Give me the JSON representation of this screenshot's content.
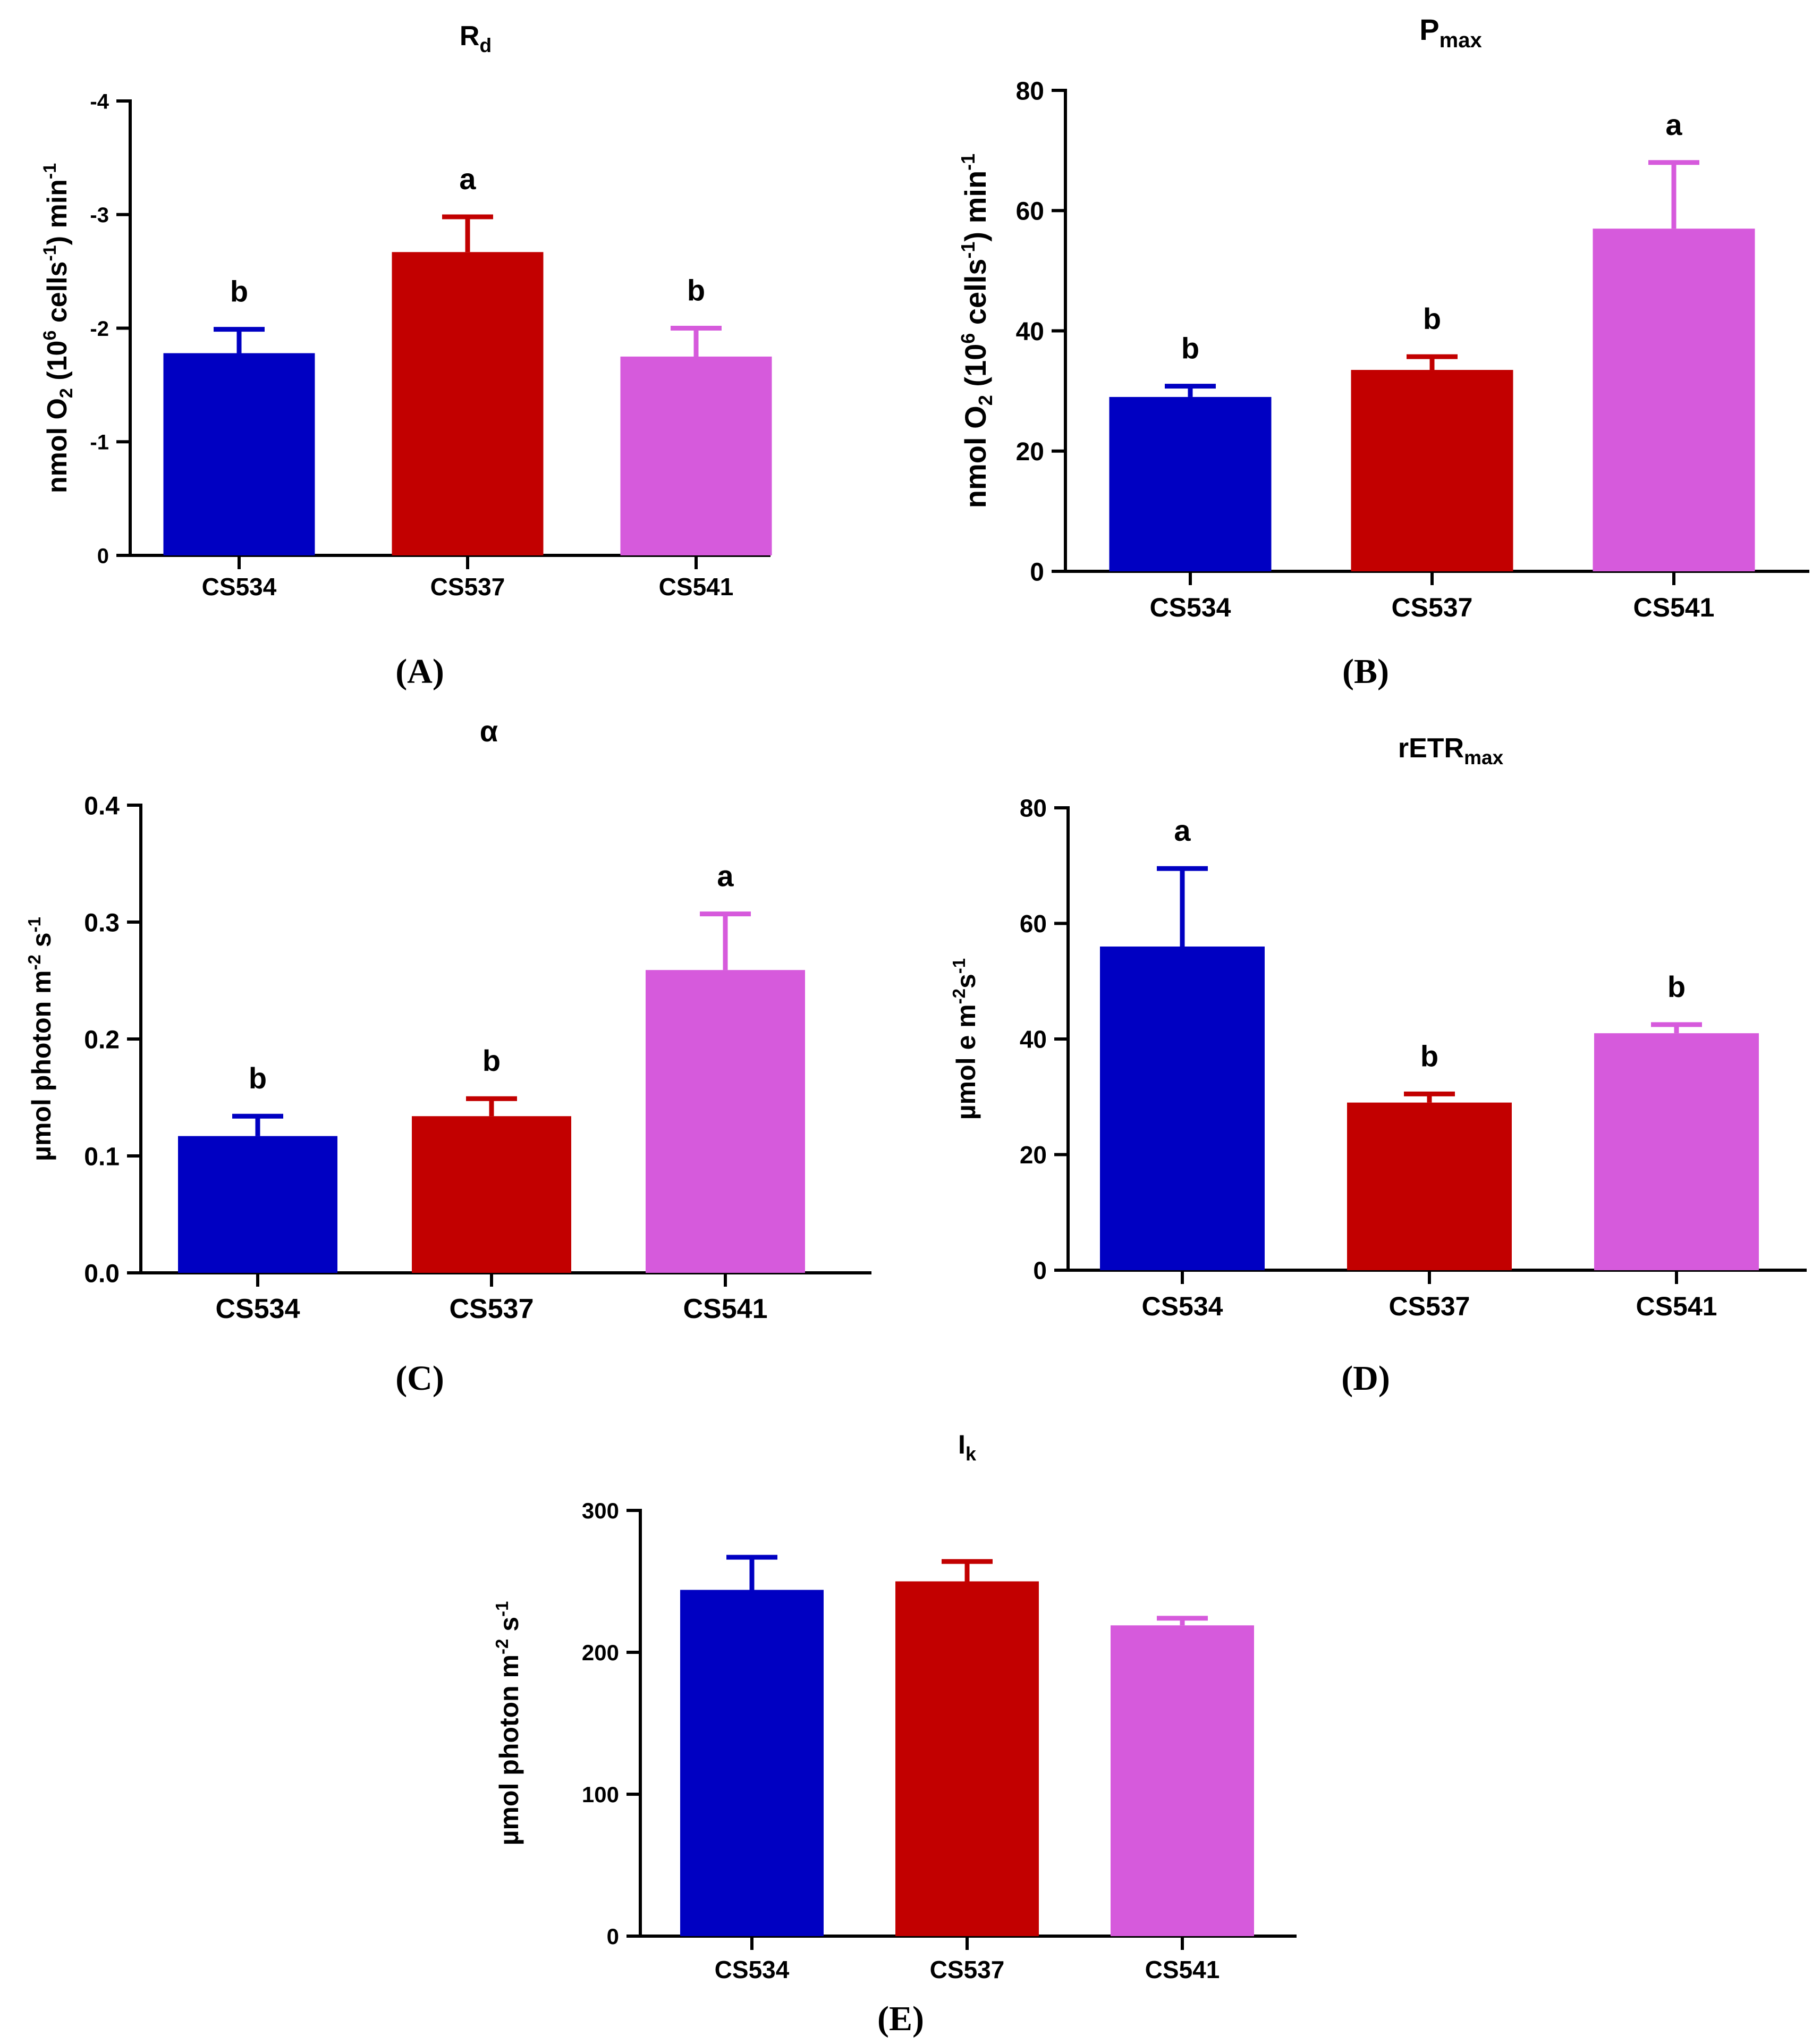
{
  "colors": {
    "CS534": "#0000c2",
    "CS537": "#c20000",
    "CS541": "#d65adc"
  },
  "chart_data": [
    {
      "panel": "A",
      "type": "bar",
      "title": "R",
      "title_sub": "d",
      "ylabel_parts": [
        "nmol O",
        "2",
        " (10",
        "6",
        " cells",
        "-1",
        ") min",
        "-1"
      ],
      "categories": [
        "CS534",
        "CS537",
        "CS541"
      ],
      "values": [
        -1.78,
        -2.67,
        -1.75
      ],
      "errors": [
        0.21,
        0.31,
        0.25
      ],
      "significance": [
        "b",
        "a",
        "b"
      ],
      "ylim": [
        0,
        -4
      ],
      "yticks": [
        0,
        -1,
        -2,
        -3,
        -4
      ],
      "ytick_labels": [
        "0",
        "-1",
        "-2",
        "-3",
        "-4"
      ],
      "panel_label": "(A)"
    },
    {
      "panel": "B",
      "type": "bar",
      "title": "P",
      "title_sub": "max",
      "ylabel_parts": [
        "nmol O",
        "2",
        " (10",
        "6",
        " cells",
        "-1",
        ") min",
        "-1"
      ],
      "categories": [
        "CS534",
        "CS537",
        "CS541"
      ],
      "values": [
        29,
        33.5,
        57
      ],
      "errors": [
        1.8,
        2.2,
        11
      ],
      "significance": [
        "b",
        "b",
        "a"
      ],
      "ylim": [
        0,
        80
      ],
      "yticks": [
        0,
        20,
        40,
        60,
        80
      ],
      "ytick_labels": [
        "0",
        "20",
        "40",
        "60",
        "80"
      ],
      "panel_label": "(B)"
    },
    {
      "panel": "C",
      "type": "bar",
      "title": "α",
      "title_sub": "",
      "ylabel_parts": [
        "µmol photon m",
        "-2",
        " s",
        "-1"
      ],
      "categories": [
        "CS534",
        "CS537",
        "CS541"
      ],
      "values": [
        0.117,
        0.134,
        0.259
      ],
      "errors": [
        0.017,
        0.015,
        0.048
      ],
      "significance": [
        "b",
        "b",
        "a"
      ],
      "ylim": [
        0,
        0.4
      ],
      "yticks": [
        0,
        0.1,
        0.2,
        0.3,
        0.4
      ],
      "ytick_labels": [
        "0.0",
        "0.1",
        "0.2",
        "0.3",
        "0.4"
      ],
      "panel_label": "(C)"
    },
    {
      "panel": "D",
      "type": "bar",
      "title": "rETR",
      "title_sub": "max",
      "ylabel_parts": [
        "µmol e m",
        "-2",
        "s",
        "-1"
      ],
      "categories": [
        "CS534",
        "CS537",
        "CS541"
      ],
      "values": [
        56,
        29,
        41
      ],
      "errors": [
        13.5,
        1.5,
        1.5
      ],
      "significance": [
        "a",
        "b",
        "b"
      ],
      "ylim": [
        0,
        80
      ],
      "yticks": [
        0,
        20,
        40,
        60,
        80
      ],
      "ytick_labels": [
        "0",
        "20",
        "40",
        "60",
        "80"
      ],
      "panel_label": "(D)"
    },
    {
      "panel": "E",
      "type": "bar",
      "title": "I",
      "title_sub": "k",
      "ylabel_parts": [
        "µmol photon m",
        "-2",
        " s",
        "-1"
      ],
      "categories": [
        "CS534",
        "CS537",
        "CS541"
      ],
      "values": [
        244,
        250,
        219
      ],
      "errors": [
        23,
        14,
        5
      ],
      "significance": [
        "",
        "",
        ""
      ],
      "ylim": [
        0,
        300
      ],
      "yticks": [
        0,
        100,
        200,
        300
      ],
      "ytick_labels": [
        "0",
        "100",
        "200",
        "300"
      ],
      "panel_label": "(E)"
    }
  ]
}
